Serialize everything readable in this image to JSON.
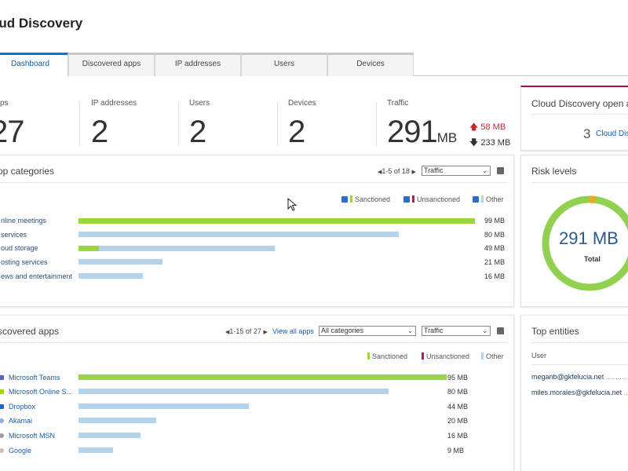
{
  "header": {
    "title": "oud Discovery"
  },
  "tabs": [
    {
      "label": "Dashboard",
      "active": true
    },
    {
      "label": "Discovered apps"
    },
    {
      "label": "IP addresses"
    },
    {
      "label": "Users"
    },
    {
      "label": "Devices"
    }
  ],
  "stats": {
    "apps": {
      "label": "ps",
      "value": "27"
    },
    "ip": {
      "label": "IP addresses",
      "value": "2"
    },
    "users": {
      "label": "Users",
      "value": "2"
    },
    "devices": {
      "label": "Devices",
      "value": "2"
    },
    "traffic": {
      "label": "Traffic",
      "value": "291",
      "unit": "MB",
      "upload": "58 MB",
      "download": "233 MB"
    }
  },
  "alerts": {
    "title": "Cloud Discovery open aler",
    "count": "3",
    "link": "Cloud Disc"
  },
  "top_categories": {
    "title": "op categories",
    "pager": "1-5 of 18",
    "metric": "Traffic",
    "legend": {
      "sanctioned": "Sanctioned",
      "unsanctioned": "Unsanctioned",
      "other": "Other"
    },
    "rows": [
      {
        "label": "nline meetings",
        "value": "99 MB",
        "total": 99,
        "sanctioned": 99
      },
      {
        "label": "services",
        "value": "80 MB",
        "total": 80,
        "sanctioned": 0
      },
      {
        "label": "oud storage",
        "value": "49 MB",
        "total": 49,
        "sanctioned": 5
      },
      {
        "label": "osting services",
        "value": "21 MB",
        "total": 21,
        "sanctioned": 0
      },
      {
        "label": "ews and entertainment",
        "value": "16 MB",
        "total": 16,
        "sanctioned": 0
      }
    ]
  },
  "risk_levels": {
    "title": "Risk levels",
    "value": "291 MB",
    "caption": "Total"
  },
  "discovered_apps": {
    "title": "scovered apps",
    "pager": "1-15 of 27",
    "view_all": "View all apps",
    "category_filter": "All categories",
    "metric": "Traffic",
    "legend": {
      "sanctioned": "Sanctioned",
      "unsanctioned": "Unsanctioned",
      "other": "Other"
    },
    "rows": [
      {
        "label": "Microsoft Teams",
        "value": "95 MB",
        "total": 95,
        "sanctioned": 95,
        "icon_color": "#5b5fc7"
      },
      {
        "label": "Microsoft Online S...",
        "value": "80 MB",
        "total": 80,
        "sanctioned": 0,
        "icon_color": "#a4cf1b"
      },
      {
        "label": "Dropbox",
        "value": "44 MB",
        "total": 44,
        "sanctioned": 0,
        "icon_color": "#1e66c8"
      },
      {
        "label": "Akamai",
        "value": "20 MB",
        "total": 20,
        "sanctioned": 0,
        "icon_color": "#8fb0d8"
      },
      {
        "label": "Microsoft MSN",
        "value": "16 MB",
        "total": 16,
        "sanctioned": 0,
        "icon_color": "#9e9e9e"
      },
      {
        "label": "Google",
        "value": "9 MB",
        "total": 9,
        "sanctioned": 0,
        "icon_color": "#c0c0c0"
      }
    ]
  },
  "top_entities": {
    "title": "Top entities",
    "column": "User",
    "rows": [
      {
        "label": "meganb@gkfelucia.net"
      },
      {
        "label": "miles.morales@gkfelucia.net"
      }
    ]
  },
  "colors": {
    "accent": "#0078d4",
    "sanctioned": "#99d640",
    "unsanctioned": "#c2185b",
    "other": "#b5d3ea",
    "upload": "#c62828",
    "ring": "#92d050"
  }
}
